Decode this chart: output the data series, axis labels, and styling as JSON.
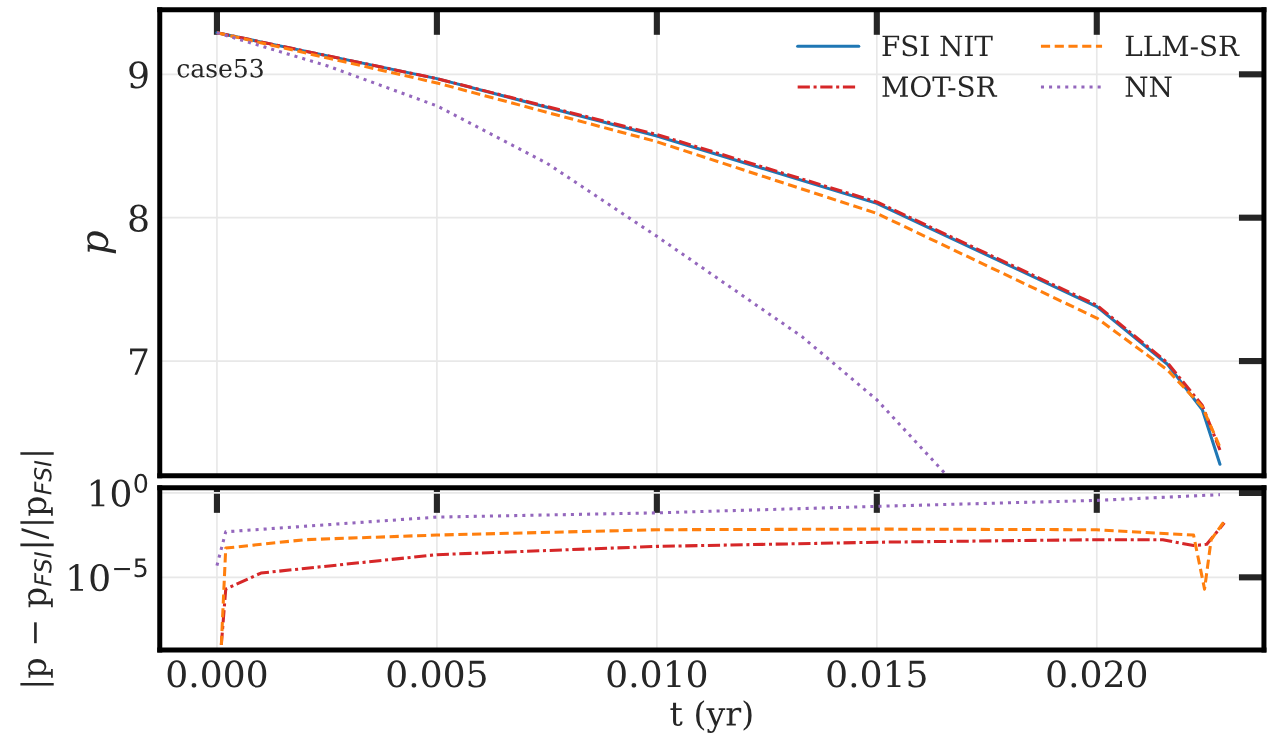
{
  "chart_data": [
    {
      "type": "line",
      "ylabel": "p",
      "annotations": [
        "case53"
      ],
      "xlim": [
        -0.0013,
        0.0238
      ],
      "ylim": [
        6.2,
        9.45
      ],
      "xticks": [
        0,
        0.005,
        0.01,
        0.015,
        0.02
      ],
      "yticks": [
        7,
        8,
        9
      ],
      "tick_labels": "y",
      "grid": true,
      "legend": "top right",
      "series": [
        {
          "name": "FSI NIT",
          "color": "#1f77b4",
          "line_style": "solid",
          "x": [
            0,
            0.005,
            0.01,
            0.015,
            0.02,
            0.0216,
            0.0224,
            0.0228
          ],
          "values": [
            9.29,
            8.97,
            8.57,
            8.1,
            7.38,
            6.98,
            6.66,
            6.28
          ]
        },
        {
          "name": "MOT-SR",
          "color": "#d62728",
          "line_style": "dashdot",
          "x": [
            0,
            0.005,
            0.01,
            0.015,
            0.02,
            0.0216,
            0.0224,
            0.0228
          ],
          "values": [
            9.29,
            8.97,
            8.58,
            8.11,
            7.39,
            6.99,
            6.69,
            6.38
          ]
        },
        {
          "name": "LLM-SR",
          "color": "#ff7f0e",
          "line_style": "dashed",
          "x": [
            0,
            0.005,
            0.01,
            0.015,
            0.02,
            0.0216,
            0.0224,
            0.0228
          ],
          "values": [
            9.29,
            8.94,
            8.53,
            8.03,
            7.3,
            6.94,
            6.68,
            6.4
          ]
        },
        {
          "name": "NN",
          "color": "#9467bd",
          "line_style": "dotted",
          "x": [
            0,
            0.0025,
            0.005,
            0.0075,
            0.01,
            0.0133,
            0.015,
            0.0166
          ],
          "values": [
            9.29,
            9.06,
            8.78,
            8.38,
            7.87,
            7.17,
            6.73,
            6.2
          ]
        }
      ]
    },
    {
      "type": "line",
      "xlabel": "t (yr)",
      "ylabel": "|p − p$_{FSI}$|/|p$_{FSI}$|",
      "log": "y",
      "xlim": [
        -0.0013,
        0.0238
      ],
      "ylim": [
        5e-10,
        2
      ],
      "xticks": [
        {
          "value": 0,
          "label": "0.000"
        },
        0.005,
        {
          "value": 0.01,
          "label": "0.010"
        },
        0.015,
        {
          "value": 0.02,
          "label": "0.020"
        }
      ],
      "yticks": [
        {
          "value": 1,
          "label": "10$^{0}$"
        },
        {
          "value": 1e-05,
          "label": "10$^{−5}$"
        }
      ],
      "grid": true,
      "series": [
        {
          "color": "#d62728",
          "line_style": "dashdot",
          "x": [
            0.0001,
            0.0002,
            0.001,
            0.005,
            0.01,
            0.015,
            0.02,
            0.0215,
            0.0222,
            0.0225,
            0.0229
          ],
          "values": [
            1e-09,
            2e-06,
            1.8e-05,
            0.00022,
            0.00068,
            0.0012,
            0.0017,
            0.0017,
            0.00076,
            0.0009,
            0.017
          ]
        },
        {
          "color": "#ff7f0e",
          "line_style": "dashed",
          "x": [
            0.0001,
            0.0002,
            0.002,
            0.005,
            0.01,
            0.015,
            0.02,
            0.0222,
            0.02245,
            0.0226,
            0.0229
          ],
          "values": [
            1e-09,
            0.00054,
            0.0017,
            0.0032,
            0.0066,
            0.0072,
            0.0066,
            0.0032,
            2e-06,
            0.0017,
            0.021
          ]
        },
        {
          "color": "#9467bd",
          "line_style": "dotted",
          "x": [
            0,
            0.0002,
            0.005,
            0.01,
            0.015,
            0.02,
            0.0228
          ],
          "values": [
            5e-05,
            0.005,
            0.037,
            0.066,
            0.16,
            0.36,
            0.79
          ]
        }
      ]
    }
  ]
}
